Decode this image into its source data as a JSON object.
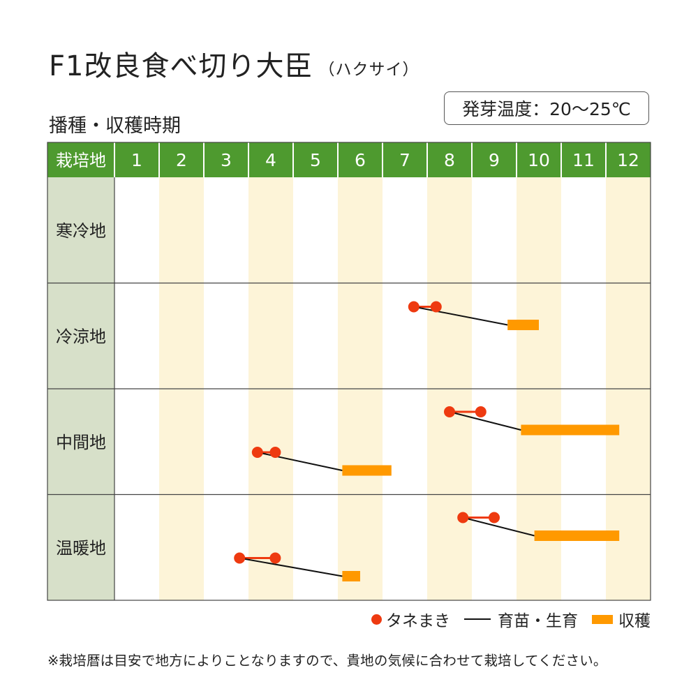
{
  "header": {
    "title": "F1改良食べ切り大臣",
    "subtitle": "（ハクサイ）",
    "section_title": "播種・収穫時期",
    "germination_temp": "発芽温度：20～25℃"
  },
  "colors": {
    "header_green": "#4e9a2f",
    "region_bg": "#d7e0c9",
    "stripe": "#fdf4d8",
    "sowing": "#ee3a10",
    "growing": "#111111",
    "harvest": "#ff9900",
    "border": "#444444"
  },
  "chart_data": {
    "type": "gantt",
    "corner_label": "栽培地",
    "months": [
      "1",
      "2",
      "3",
      "4",
      "5",
      "6",
      "7",
      "8",
      "9",
      "10",
      "11",
      "12"
    ],
    "regions": [
      {
        "name": "寒冷地",
        "rows": []
      },
      {
        "name": "冷涼地",
        "rows": [
          {
            "sow": [
              7.7,
              8.2
            ],
            "harvest": [
              9.8,
              10.5
            ]
          }
        ]
      },
      {
        "name": "中間地",
        "rows": [
          {
            "sow": [
              8.5,
              9.2
            ],
            "harvest": [
              10.1,
              12.3
            ]
          },
          {
            "sow": [
              4.2,
              4.6
            ],
            "harvest": [
              6.1,
              7.2
            ]
          }
        ]
      },
      {
        "name": "温暖地",
        "rows": [
          {
            "sow": [
              8.8,
              9.5
            ],
            "harvest": [
              10.4,
              12.3
            ]
          },
          {
            "sow": [
              3.8,
              4.6
            ],
            "harvest": [
              6.1,
              6.5
            ]
          }
        ]
      }
    ]
  },
  "legend": {
    "sowing": "タネまき",
    "growing": "育苗・生育",
    "harvest": "収穫"
  },
  "footnote": "※栽培暦は目安で地方によりことなりますので、貴地の気候に合わせて栽培してください。"
}
